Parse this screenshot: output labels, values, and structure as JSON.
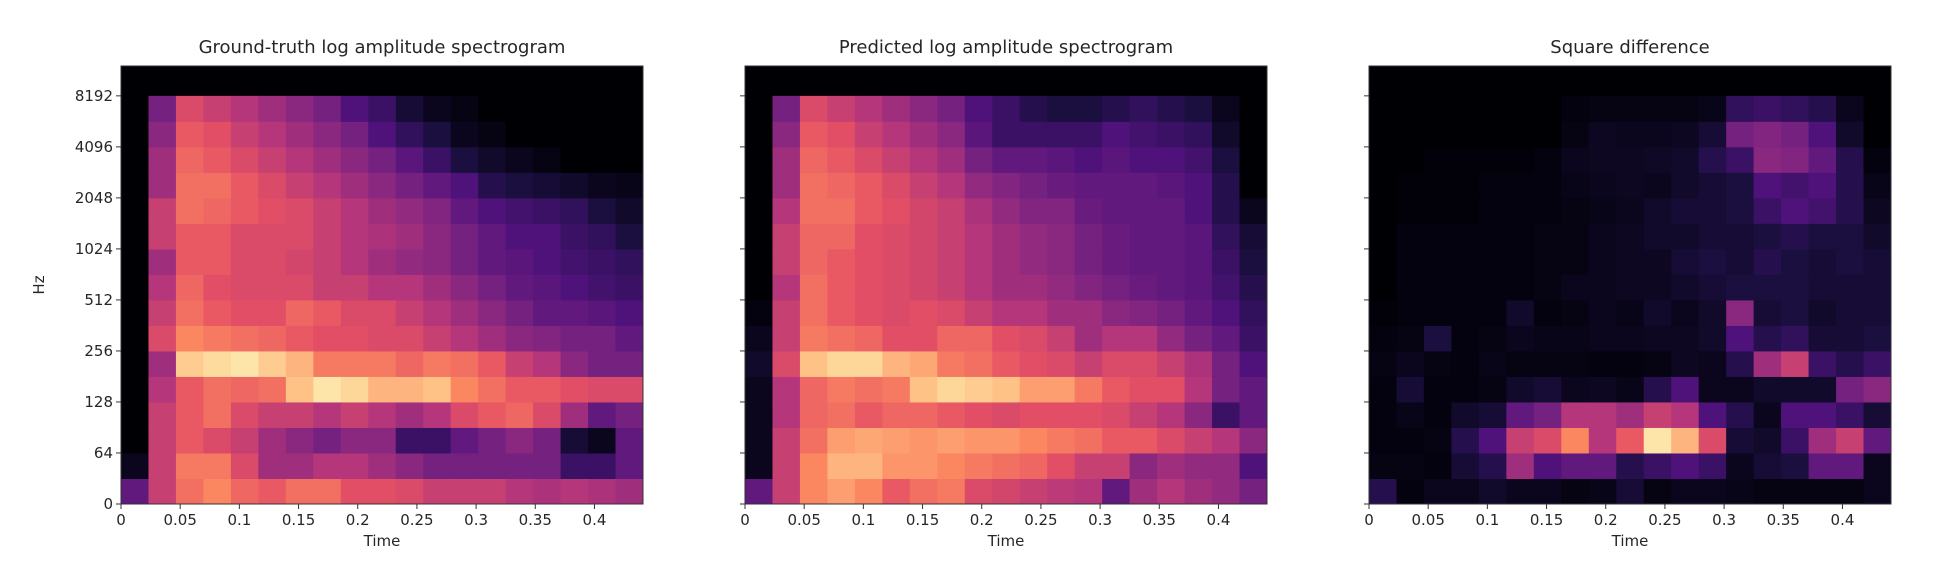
{
  "chart_data": [
    {
      "type": "heatmap",
      "title": "Ground-truth log amplitude spectrogram",
      "xlabel": "Time",
      "ylabel": "Hz",
      "colormap": "magma",
      "x_ticks": [
        "0",
        "0.05",
        "0.1",
        "0.15",
        "0.2",
        "0.25",
        "0.3",
        "0.35",
        "0.4"
      ],
      "y_ticks": [
        "0",
        "64",
        "128",
        "256",
        "512",
        "1024",
        "2048",
        "4096",
        "8192"
      ],
      "y_scale": "log",
      "xlim": [
        0,
        0.441
      ],
      "frame_times": [
        0,
        0.023,
        0.046,
        0.07,
        0.093,
        0.116,
        0.139,
        0.163,
        0.186,
        0.209,
        0.232,
        0.255,
        0.279,
        0.302,
        0.325,
        0.348,
        0.372,
        0.395,
        0.418
      ],
      "band_edges_hz": [
        0,
        32,
        64,
        90,
        128,
        181,
        256,
        362,
        512,
        724,
        1024,
        1448,
        2048,
        2896,
        4096,
        5793,
        8192
      ],
      "intensity_columns_low_to_high": [
        [
          0.3,
          0.05,
          0,
          0,
          0,
          0,
          0,
          0,
          0,
          0,
          0,
          0,
          0,
          0,
          0,
          0
        ],
        [
          0.55,
          0.55,
          0.55,
          0.55,
          0.5,
          0.45,
          0.6,
          0.55,
          0.5,
          0.45,
          0.55,
          0.55,
          0.45,
          0.45,
          0.4,
          0.35
        ],
        [
          0.7,
          0.72,
          0.65,
          0.65,
          0.65,
          0.9,
          0.75,
          0.7,
          0.68,
          0.65,
          0.65,
          0.7,
          0.7,
          0.68,
          0.65,
          0.6
        ],
        [
          0.75,
          0.72,
          0.6,
          0.7,
          0.7,
          0.93,
          0.72,
          0.65,
          0.62,
          0.65,
          0.65,
          0.68,
          0.7,
          0.65,
          0.62,
          0.55
        ],
        [
          0.68,
          0.6,
          0.55,
          0.6,
          0.68,
          0.95,
          0.7,
          0.62,
          0.6,
          0.6,
          0.6,
          0.65,
          0.65,
          0.6,
          0.55,
          0.5
        ],
        [
          0.65,
          0.45,
          0.45,
          0.55,
          0.7,
          0.9,
          0.68,
          0.62,
          0.6,
          0.6,
          0.6,
          0.62,
          0.6,
          0.55,
          0.5,
          0.45
        ],
        [
          0.7,
          0.45,
          0.4,
          0.55,
          0.88,
          0.85,
          0.65,
          0.68,
          0.6,
          0.58,
          0.6,
          0.6,
          0.55,
          0.5,
          0.45,
          0.4
        ],
        [
          0.7,
          0.5,
          0.35,
          0.5,
          0.95,
          0.72,
          0.62,
          0.65,
          0.55,
          0.55,
          0.55,
          0.55,
          0.5,
          0.45,
          0.4,
          0.35
        ],
        [
          0.62,
          0.5,
          0.4,
          0.55,
          0.92,
          0.72,
          0.62,
          0.6,
          0.55,
          0.5,
          0.5,
          0.5,
          0.45,
          0.4,
          0.35,
          0.25
        ],
        [
          0.62,
          0.45,
          0.4,
          0.5,
          0.85,
          0.72,
          0.6,
          0.6,
          0.5,
          0.45,
          0.48,
          0.45,
          0.4,
          0.35,
          0.25,
          0.2
        ],
        [
          0.6,
          0.4,
          0.2,
          0.45,
          0.85,
          0.68,
          0.6,
          0.55,
          0.5,
          0.42,
          0.45,
          0.42,
          0.35,
          0.28,
          0.18,
          0.1
        ],
        [
          0.55,
          0.35,
          0.2,
          0.5,
          0.88,
          0.72,
          0.55,
          0.5,
          0.45,
          0.4,
          0.4,
          0.38,
          0.3,
          0.2,
          0.12,
          0.05
        ],
        [
          0.55,
          0.35,
          0.3,
          0.6,
          0.75,
          0.7,
          0.5,
          0.45,
          0.4,
          0.35,
          0.35,
          0.3,
          0.25,
          0.12,
          0.05,
          0.03
        ],
        [
          0.55,
          0.35,
          0.35,
          0.65,
          0.7,
          0.65,
          0.45,
          0.4,
          0.35,
          0.3,
          0.3,
          0.25,
          0.15,
          0.08,
          0.03,
          0
        ],
        [
          0.5,
          0.35,
          0.4,
          0.68,
          0.65,
          0.55,
          0.4,
          0.35,
          0.3,
          0.28,
          0.25,
          0.22,
          0.12,
          0.05,
          0,
          0
        ],
        [
          0.48,
          0.35,
          0.35,
          0.6,
          0.65,
          0.5,
          0.38,
          0.3,
          0.28,
          0.25,
          0.25,
          0.2,
          0.1,
          0.03,
          0,
          0
        ],
        [
          0.5,
          0.2,
          0.1,
          0.45,
          0.62,
          0.4,
          0.35,
          0.3,
          0.25,
          0.22,
          0.2,
          0.18,
          0.08,
          0,
          0,
          0
        ],
        [
          0.48,
          0.2,
          0.05,
          0.3,
          0.6,
          0.35,
          0.35,
          0.28,
          0.22,
          0.2,
          0.18,
          0.12,
          0.05,
          0,
          0,
          0
        ],
        [
          0.45,
          0.3,
          0.3,
          0.35,
          0.6,
          0.35,
          0.3,
          0.25,
          0.2,
          0.18,
          0.12,
          0.08,
          0.04,
          0,
          0,
          0
        ]
      ]
    },
    {
      "type": "heatmap",
      "title": "Predicted log amplitude spectrogram",
      "xlabel": "Time",
      "colormap": "magma",
      "x_ticks": [
        "0",
        "0.05",
        "0.1",
        "0.15",
        "0.2",
        "0.25",
        "0.3",
        "0.35",
        "0.4"
      ],
      "y_scale": "log",
      "xlim": [
        0,
        0.441
      ],
      "intensity_columns_low_to_high": [
        [
          0.3,
          0.05,
          0.05,
          0.05,
          0.05,
          0.08,
          0.05,
          0.02,
          0,
          0,
          0,
          0,
          0,
          0,
          0,
          0
        ],
        [
          0.55,
          0.55,
          0.55,
          0.5,
          0.5,
          0.6,
          0.55,
          0.55,
          0.5,
          0.55,
          0.55,
          0.5,
          0.45,
          0.45,
          0.4,
          0.35
        ],
        [
          0.75,
          0.75,
          0.7,
          0.68,
          0.68,
          0.88,
          0.72,
          0.7,
          0.7,
          0.68,
          0.68,
          0.7,
          0.7,
          0.68,
          0.65,
          0.6
        ],
        [
          0.8,
          0.85,
          0.8,
          0.7,
          0.72,
          0.92,
          0.7,
          0.65,
          0.65,
          0.65,
          0.68,
          0.7,
          0.68,
          0.65,
          0.62,
          0.55
        ],
        [
          0.75,
          0.85,
          0.82,
          0.65,
          0.7,
          0.92,
          0.68,
          0.62,
          0.62,
          0.62,
          0.62,
          0.65,
          0.65,
          0.6,
          0.55,
          0.5
        ],
        [
          0.65,
          0.78,
          0.8,
          0.68,
          0.72,
          0.85,
          0.62,
          0.6,
          0.6,
          0.6,
          0.6,
          0.62,
          0.6,
          0.55,
          0.5,
          0.45
        ],
        [
          0.7,
          0.78,
          0.78,
          0.68,
          0.88,
          0.82,
          0.62,
          0.62,
          0.58,
          0.58,
          0.58,
          0.58,
          0.55,
          0.5,
          0.45,
          0.4
        ],
        [
          0.72,
          0.75,
          0.8,
          0.65,
          0.92,
          0.72,
          0.68,
          0.6,
          0.55,
          0.55,
          0.55,
          0.55,
          0.5,
          0.45,
          0.4,
          0.35
        ],
        [
          0.6,
          0.72,
          0.78,
          0.62,
          0.9,
          0.7,
          0.68,
          0.55,
          0.5,
          0.5,
          0.5,
          0.48,
          0.42,
          0.35,
          0.28,
          0.25
        ],
        [
          0.58,
          0.7,
          0.78,
          0.6,
          0.88,
          0.65,
          0.62,
          0.5,
          0.45,
          0.45,
          0.45,
          0.42,
          0.38,
          0.3,
          0.2,
          0.2
        ],
        [
          0.55,
          0.68,
          0.75,
          0.62,
          0.8,
          0.62,
          0.6,
          0.5,
          0.45,
          0.42,
          0.42,
          0.38,
          0.35,
          0.3,
          0.2,
          0.15
        ],
        [
          0.52,
          0.62,
          0.72,
          0.62,
          0.8,
          0.6,
          0.55,
          0.45,
          0.42,
          0.4,
          0.4,
          0.38,
          0.32,
          0.28,
          0.2,
          0.12
        ],
        [
          0.5,
          0.55,
          0.7,
          0.62,
          0.72,
          0.55,
          0.45,
          0.45,
          0.38,
          0.35,
          0.35,
          0.32,
          0.3,
          0.25,
          0.2,
          0.12
        ],
        [
          0.3,
          0.55,
          0.65,
          0.6,
          0.65,
          0.6,
          0.5,
          0.4,
          0.35,
          0.32,
          0.32,
          0.3,
          0.3,
          0.28,
          0.25,
          0.15
        ],
        [
          0.45,
          0.4,
          0.65,
          0.55,
          0.62,
          0.6,
          0.5,
          0.38,
          0.32,
          0.3,
          0.3,
          0.3,
          0.3,
          0.25,
          0.22,
          0.18
        ],
        [
          0.5,
          0.45,
          0.6,
          0.5,
          0.62,
          0.55,
          0.42,
          0.35,
          0.3,
          0.3,
          0.3,
          0.3,
          0.28,
          0.25,
          0.2,
          0.15
        ],
        [
          0.45,
          0.42,
          0.55,
          0.4,
          0.5,
          0.48,
          0.35,
          0.3,
          0.28,
          0.28,
          0.28,
          0.25,
          0.25,
          0.22,
          0.18,
          0.12
        ],
        [
          0.42,
          0.42,
          0.5,
          0.2,
          0.35,
          0.35,
          0.3,
          0.25,
          0.22,
          0.2,
          0.18,
          0.15,
          0.15,
          0.12,
          0.08,
          0.05
        ],
        [
          0.35,
          0.25,
          0.4,
          0.3,
          0.3,
          0.25,
          0.2,
          0.18,
          0.15,
          0.12,
          0.1,
          0.05,
          0,
          0,
          0,
          0
        ]
      ]
    },
    {
      "type": "heatmap",
      "title": "Square difference",
      "xlabel": "Time",
      "colormap": "magma",
      "x_ticks": [
        "0",
        "0.05",
        "0.1",
        "0.15",
        "0.2",
        "0.25",
        "0.3",
        "0.35",
        "0.4"
      ],
      "y_scale": "log",
      "xlim": [
        0,
        0.441
      ],
      "intensity_columns_low_to_high": [
        [
          0.15,
          0.03,
          0.02,
          0.02,
          0.02,
          0.03,
          0.02,
          0.01,
          0,
          0,
          0,
          0,
          0,
          0,
          0,
          0
        ],
        [
          0.02,
          0.03,
          0.02,
          0.04,
          0.1,
          0.05,
          0.03,
          0.02,
          0.02,
          0.02,
          0.02,
          0.01,
          0.01,
          0,
          0,
          0
        ],
        [
          0.05,
          0.02,
          0.03,
          0.02,
          0.02,
          0.03,
          0.12,
          0.02,
          0.02,
          0.02,
          0.02,
          0.01,
          0.01,
          0.01,
          0,
          0
        ],
        [
          0.05,
          0.1,
          0.15,
          0.08,
          0.02,
          0.02,
          0.02,
          0.02,
          0.02,
          0.02,
          0.02,
          0.01,
          0.01,
          0.01,
          0,
          0
        ],
        [
          0.08,
          0.15,
          0.25,
          0.1,
          0.03,
          0.04,
          0.03,
          0.02,
          0.02,
          0.02,
          0.02,
          0.02,
          0.02,
          0.01,
          0,
          0
        ],
        [
          0.05,
          0.45,
          0.55,
          0.3,
          0.08,
          0.03,
          0.05,
          0.08,
          0.02,
          0.02,
          0.02,
          0.02,
          0.02,
          0.01,
          0,
          0
        ],
        [
          0.05,
          0.25,
          0.6,
          0.35,
          0.1,
          0.03,
          0.04,
          0.02,
          0.03,
          0.03,
          0.03,
          0.02,
          0.02,
          0.02,
          0,
          0
        ],
        [
          0.03,
          0.3,
          0.75,
          0.5,
          0.05,
          0.03,
          0.04,
          0.03,
          0.05,
          0.03,
          0.03,
          0.03,
          0.04,
          0.05,
          0.03,
          0.02
        ],
        [
          0.04,
          0.3,
          0.5,
          0.5,
          0.06,
          0.02,
          0.05,
          0.05,
          0.05,
          0.05,
          0.05,
          0.04,
          0.05,
          0.06,
          0.06,
          0.03
        ],
        [
          0.1,
          0.15,
          0.65,
          0.45,
          0.04,
          0.02,
          0.05,
          0.04,
          0.06,
          0.06,
          0.06,
          0.05,
          0.06,
          0.06,
          0.05,
          0.03
        ],
        [
          0.03,
          0.2,
          0.95,
          0.55,
          0.15,
          0.03,
          0.06,
          0.08,
          0.06,
          0.06,
          0.08,
          0.08,
          0.05,
          0.07,
          0.05,
          0.03
        ],
        [
          0.05,
          0.25,
          0.85,
          0.5,
          0.25,
          0.06,
          0.06,
          0.05,
          0.08,
          0.1,
          0.08,
          0.1,
          0.08,
          0.08,
          0.06,
          0.03
        ],
        [
          0.05,
          0.2,
          0.6,
          0.25,
          0.05,
          0.05,
          0.08,
          0.08,
          0.1,
          0.12,
          0.1,
          0.1,
          0.1,
          0.15,
          0.1,
          0.04
        ],
        [
          0.04,
          0.05,
          0.1,
          0.15,
          0.05,
          0.15,
          0.25,
          0.4,
          0.12,
          0.1,
          0.1,
          0.12,
          0.12,
          0.2,
          0.35,
          0.18
        ],
        [
          0.03,
          0.1,
          0.08,
          0.05,
          0.08,
          0.45,
          0.15,
          0.1,
          0.12,
          0.15,
          0.12,
          0.2,
          0.25,
          0.4,
          0.38,
          0.2
        ],
        [
          0.03,
          0.12,
          0.2,
          0.25,
          0.08,
          0.55,
          0.18,
          0.12,
          0.12,
          0.12,
          0.15,
          0.25,
          0.22,
          0.38,
          0.35,
          0.18
        ],
        [
          0.03,
          0.3,
          0.45,
          0.25,
          0.08,
          0.2,
          0.1,
          0.08,
          0.1,
          0.1,
          0.12,
          0.22,
          0.25,
          0.3,
          0.25,
          0.15
        ],
        [
          0.03,
          0.3,
          0.55,
          0.2,
          0.35,
          0.15,
          0.1,
          0.1,
          0.1,
          0.12,
          0.12,
          0.15,
          0.15,
          0.15,
          0.08,
          0.05
        ],
        [
          0.05,
          0.05,
          0.3,
          0.1,
          0.4,
          0.2,
          0.12,
          0.1,
          0.1,
          0.1,
          0.08,
          0.06,
          0.04,
          0.02,
          0,
          0
        ]
      ]
    }
  ]
}
